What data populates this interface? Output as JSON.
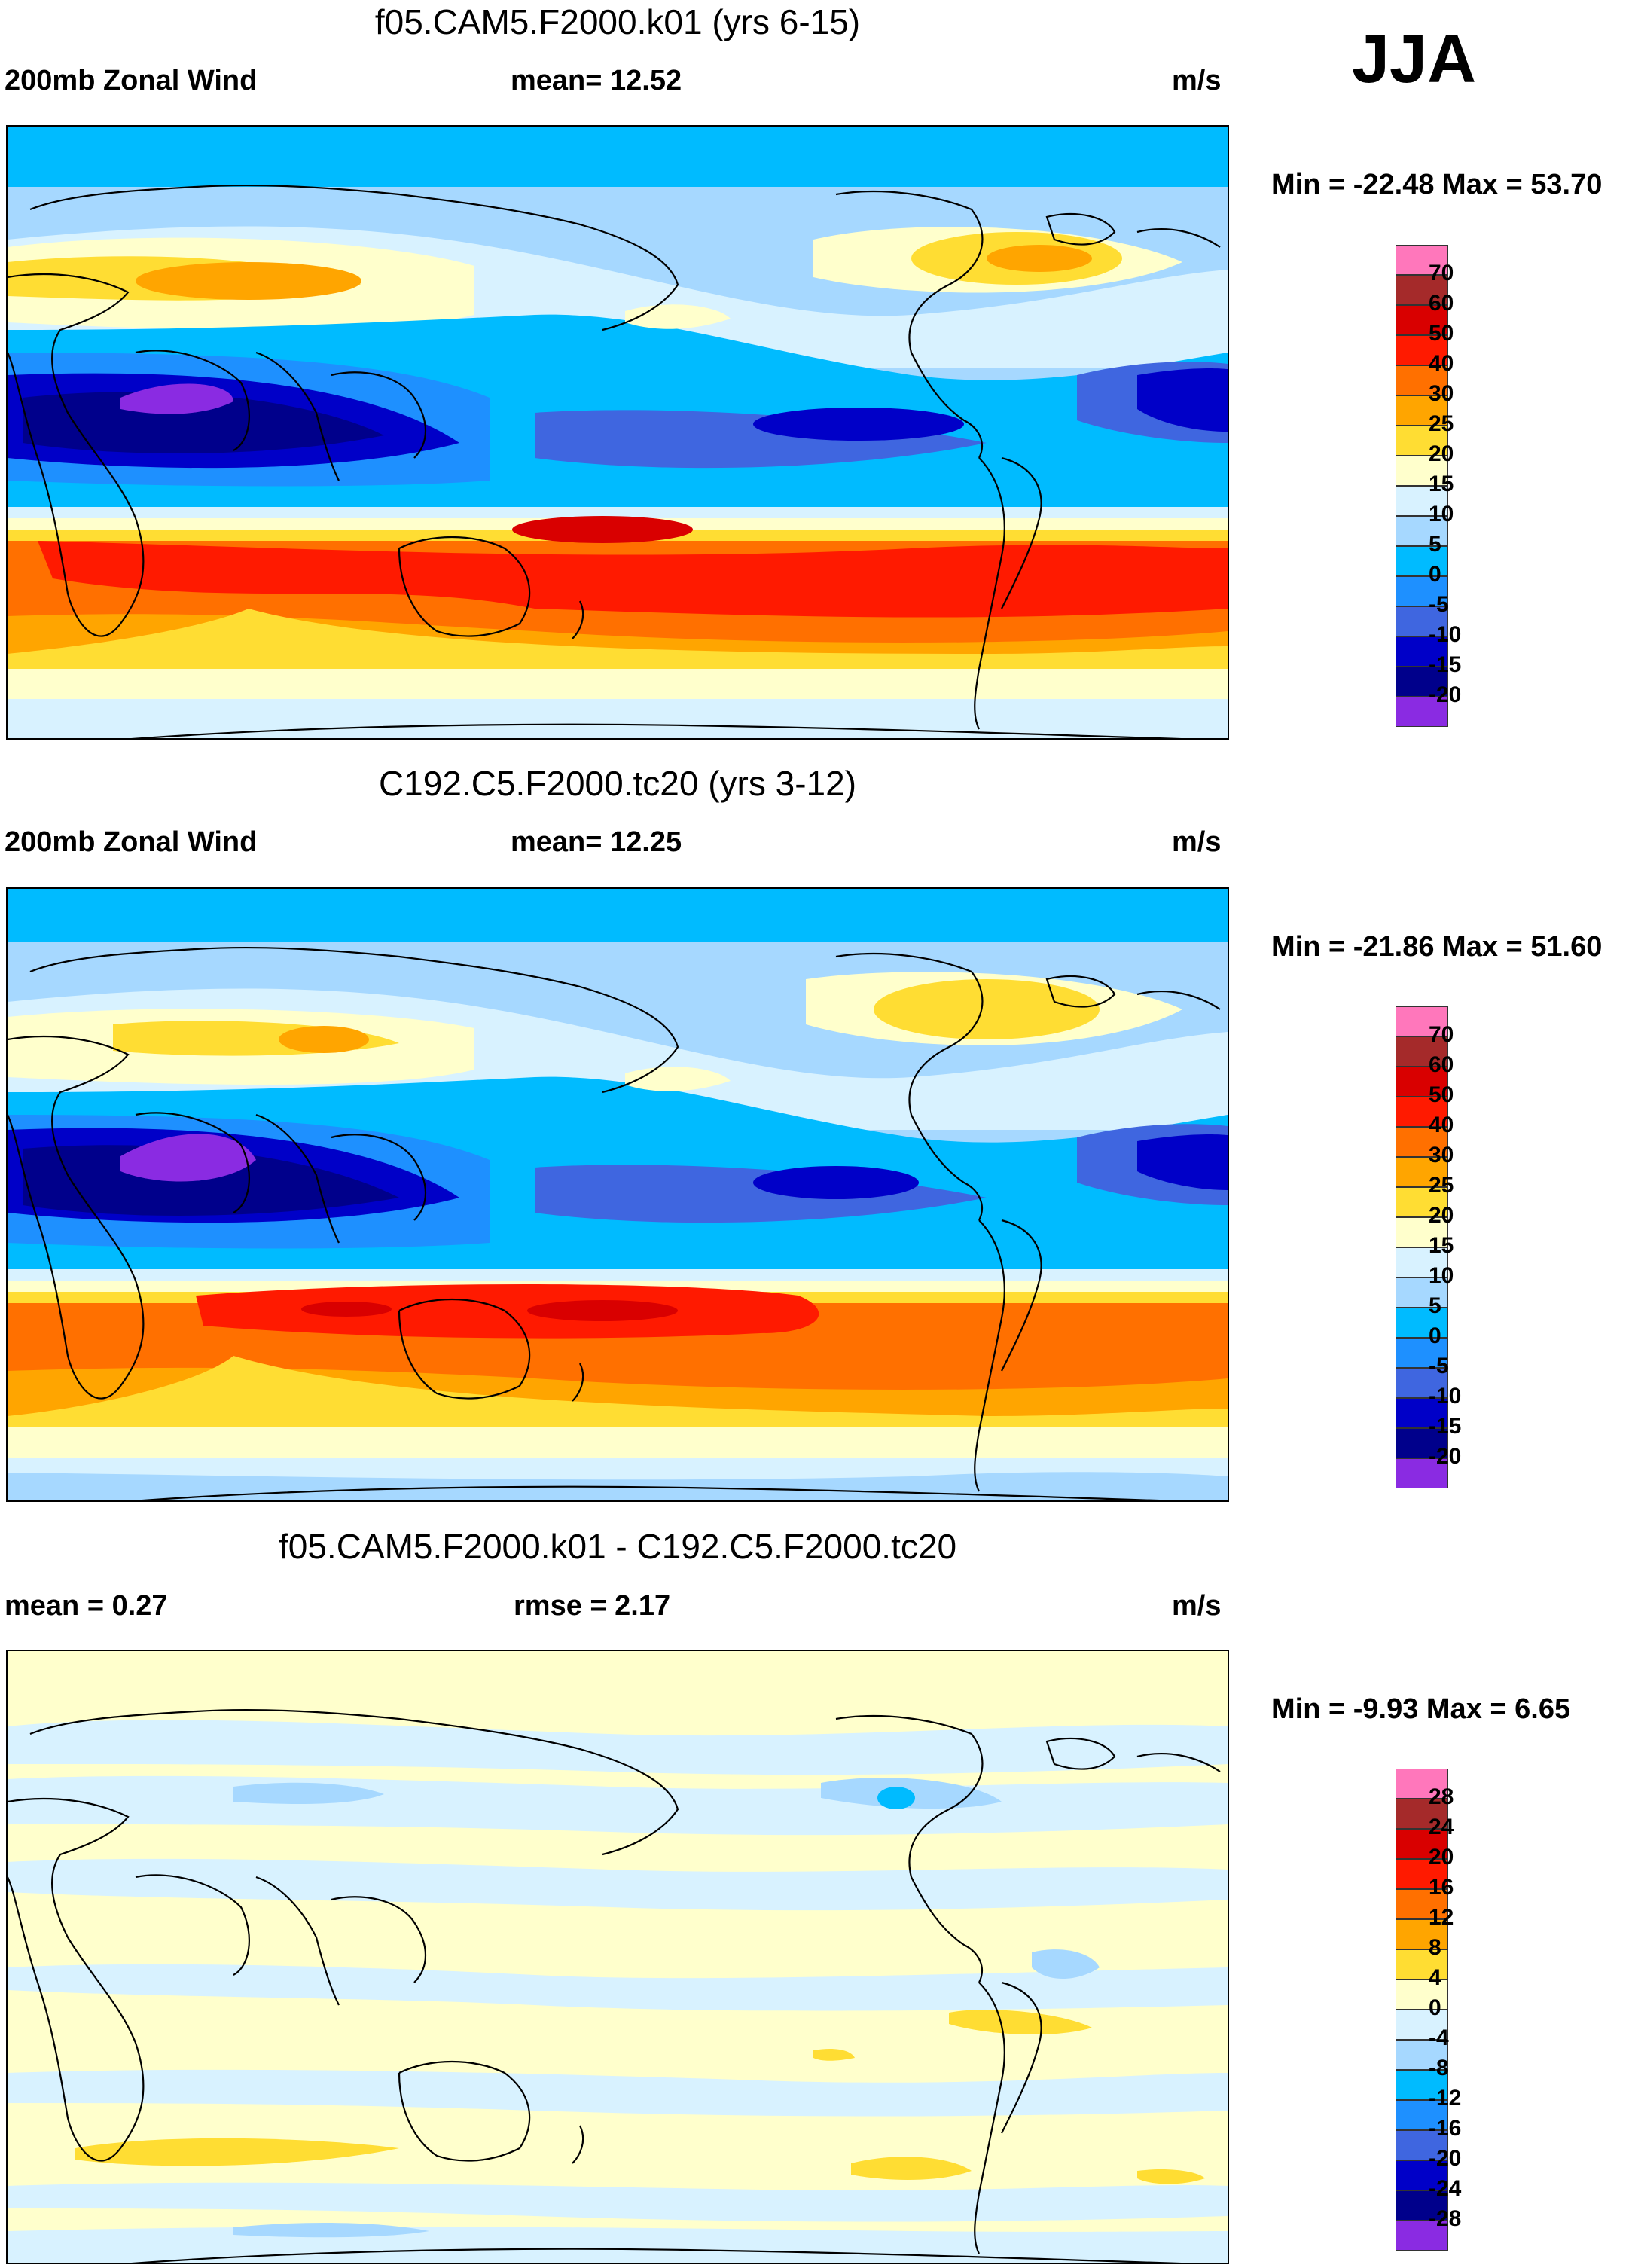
{
  "season": "JJA",
  "panels": [
    {
      "title": "f05.CAM5.F2000.k01 (yrs 6-15)",
      "left_label": "200mb Zonal Wind",
      "center_label": "mean=  12.52",
      "units": "m/s",
      "min_max": "Min = -22.48 Max =  53.70",
      "colorbar_levels": [
        "70",
        "60",
        "50",
        "40",
        "30",
        "25",
        "20",
        "15",
        "10",
        "5",
        "0",
        "-5",
        "-10",
        "-15",
        "-20"
      ]
    },
    {
      "title": "C192.C5.F2000.tc20 (yrs 3-12)",
      "left_label": "200mb Zonal Wind",
      "center_label": "mean=  12.25",
      "units": "m/s",
      "min_max": "Min = -21.86 Max =  51.60",
      "colorbar_levels": [
        "70",
        "60",
        "50",
        "40",
        "30",
        "25",
        "20",
        "15",
        "10",
        "5",
        "0",
        "-5",
        "-10",
        "-15",
        "-20"
      ]
    },
    {
      "title": "f05.CAM5.F2000.k01 - C192.C5.F2000.tc20",
      "left_label": "mean =   0.27",
      "center_label": "rmse =   2.17",
      "units": "m/s",
      "min_max": "Min =  -9.93 Max =   6.65",
      "colorbar_levels": [
        "28",
        "24",
        "20",
        "16",
        "12",
        "8",
        "4",
        "0",
        "-4",
        "-8",
        "-12",
        "-16",
        "-20",
        "-24",
        "-28"
      ]
    }
  ],
  "colors": {
    "wind_scale": [
      "#ff77bb",
      "#a52a2a",
      "#d90000",
      "#ff1a00",
      "#ff7000",
      "#ffa500",
      "#ffdd33",
      "#ffffcc",
      "#d8f2ff",
      "#a6d8ff",
      "#00bbff",
      "#1e90ff",
      "#3f66e0",
      "#0000c8",
      "#00008b",
      "#8a2be2"
    ],
    "diff_scale": [
      "#ff77bb",
      "#a52a2a",
      "#d90000",
      "#ff1a00",
      "#ff7000",
      "#ffa500",
      "#ffdd33",
      "#ffffcc",
      "#d8f2ff",
      "#a6d8ff",
      "#00bbff",
      "#1e90ff",
      "#3f66e0",
      "#0000c8",
      "#00008b",
      "#8a2be2"
    ],
    "coastline": "#000000"
  }
}
